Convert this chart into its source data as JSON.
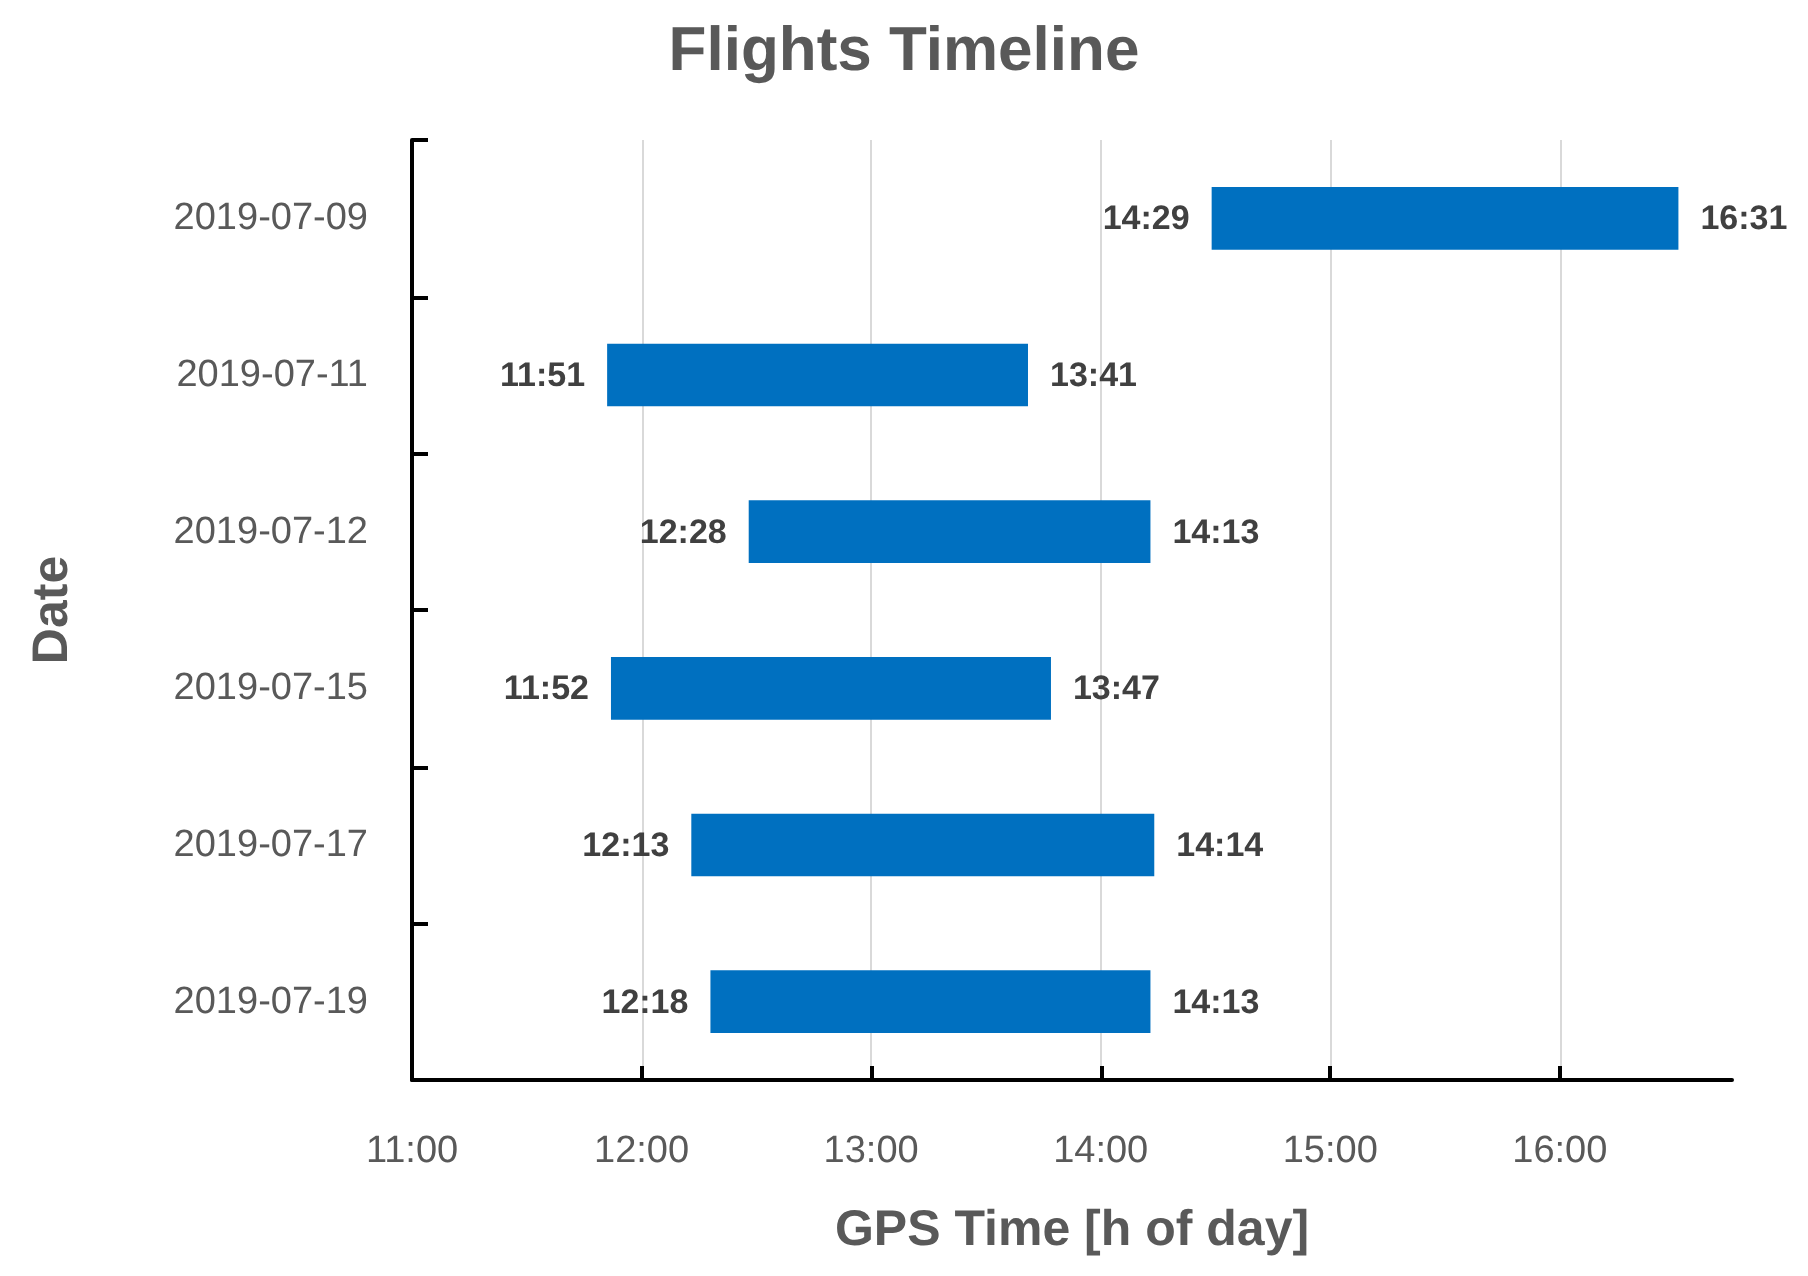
{
  "chart_data": {
    "type": "bar",
    "orientation": "horizontal",
    "title": "Flights Timeline",
    "xlabel": "GPS Time [h of day]",
    "ylabel": "Date",
    "categories": [
      "2019-07-09",
      "2019-07-11",
      "2019-07-12",
      "2019-07-15",
      "2019-07-17",
      "2019-07-19"
    ],
    "base": [
      14.4833,
      11.85,
      12.4667,
      11.8667,
      12.2167,
      12.3
    ],
    "values": [
      2.0333,
      1.8333,
      1.75,
      1.9167,
      2.0167,
      1.9167
    ],
    "color": "#0070c0",
    "xlim": [
      11,
      16.75
    ],
    "xticks": [
      {
        "value": 11,
        "label": "11:00"
      },
      {
        "value": 12,
        "label": "12:00"
      },
      {
        "value": 13,
        "label": "13:00"
      },
      {
        "value": 14,
        "label": "14:00"
      },
      {
        "value": 15,
        "label": "15:00"
      },
      {
        "value": 16,
        "label": "16:00"
      }
    ],
    "grid": "x",
    "annotations": [
      {
        "text": "14:29",
        "x": 14.4833,
        "y": "2019-07-09"
      },
      {
        "text": "16:31",
        "x": 16.5167,
        "y": "2019-07-09"
      },
      {
        "text": "11:51",
        "x": 11.85,
        "y": "2019-07-11"
      },
      {
        "text": "13:41",
        "x": 13.6833,
        "y": "2019-07-11"
      },
      {
        "text": "12:28",
        "x": 12.4667,
        "y": "2019-07-12"
      },
      {
        "text": "14:13",
        "x": 14.2167,
        "y": "2019-07-12"
      },
      {
        "text": "11:52",
        "x": 11.8667,
        "y": "2019-07-15"
      },
      {
        "text": "13:47",
        "x": 13.7833,
        "y": "2019-07-15"
      },
      {
        "text": "12:13",
        "x": 12.2167,
        "y": "2019-07-17"
      },
      {
        "text": "14:14",
        "x": 14.2333,
        "y": "2019-07-17"
      },
      {
        "text": "12:18",
        "x": 12.3,
        "y": "2019-07-19"
      },
      {
        "text": "14:13",
        "x": 14.2167,
        "y": "2019-07-19"
      }
    ]
  }
}
